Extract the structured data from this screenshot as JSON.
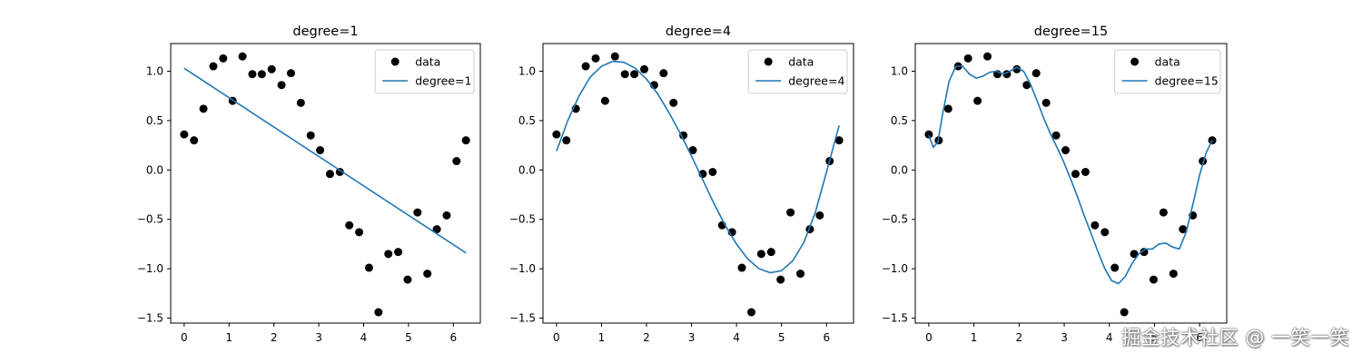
{
  "watermark": "掘金技术社区 @ 一笑一笑",
  "chart_data": [
    {
      "type": "line",
      "title": "degree=1",
      "xlabel": "",
      "ylabel": "",
      "xlim": [
        -0.3,
        6.6
      ],
      "ylim": [
        -1.55,
        1.28
      ],
      "xticks": [
        0,
        1,
        2,
        3,
        4,
        5,
        6
      ],
      "yticks": [
        -1.5,
        -1.0,
        -0.5,
        0.0,
        0.5,
        1.0
      ],
      "legend_position": "top-right",
      "series": [
        {
          "name": "data",
          "kind": "scatter",
          "color": "#000000",
          "x": [
            0.0,
            0.22,
            0.43,
            0.65,
            0.87,
            1.08,
            1.3,
            1.52,
            1.73,
            1.95,
            2.17,
            2.38,
            2.6,
            2.82,
            3.03,
            3.25,
            3.47,
            3.68,
            3.9,
            4.12,
            4.33,
            4.55,
            4.77,
            4.98,
            5.2,
            5.42,
            5.63,
            5.85,
            6.07,
            6.28
          ],
          "y": [
            0.36,
            0.3,
            0.62,
            1.05,
            1.13,
            0.7,
            1.15,
            0.97,
            0.97,
            1.02,
            0.86,
            0.98,
            0.68,
            0.35,
            0.2,
            -0.04,
            -0.02,
            -0.56,
            -0.63,
            -0.99,
            -1.44,
            -0.85,
            -0.83,
            -1.11,
            -0.43,
            -1.05,
            -0.6,
            -0.46,
            0.09,
            0.3
          ]
        },
        {
          "name": "degree=1",
          "kind": "line",
          "color": "#1f77b4",
          "x": [
            0.0,
            6.28
          ],
          "y": [
            1.03,
            -0.84
          ]
        }
      ]
    },
    {
      "type": "line",
      "title": "degree=4",
      "xlabel": "",
      "ylabel": "",
      "xlim": [
        -0.3,
        6.6
      ],
      "ylim": [
        -1.55,
        1.28
      ],
      "xticks": [
        0,
        1,
        2,
        3,
        4,
        5,
        6
      ],
      "yticks": [
        -1.5,
        -1.0,
        -0.5,
        0.0,
        0.5,
        1.0
      ],
      "legend_position": "top-right",
      "series": [
        {
          "name": "data",
          "kind": "scatter",
          "color": "#000000",
          "x": [
            0.0,
            0.22,
            0.43,
            0.65,
            0.87,
            1.08,
            1.3,
            1.52,
            1.73,
            1.95,
            2.17,
            2.38,
            2.6,
            2.82,
            3.03,
            3.25,
            3.47,
            3.68,
            3.9,
            4.12,
            4.33,
            4.55,
            4.77,
            4.98,
            5.2,
            5.42,
            5.63,
            5.85,
            6.07,
            6.28
          ],
          "y": [
            0.36,
            0.3,
            0.62,
            1.05,
            1.13,
            0.7,
            1.15,
            0.97,
            0.97,
            1.02,
            0.86,
            0.98,
            0.68,
            0.35,
            0.2,
            -0.04,
            -0.02,
            -0.56,
            -0.63,
            -0.99,
            -1.44,
            -0.85,
            -0.83,
            -1.11,
            -0.43,
            -1.05,
            -0.6,
            -0.46,
            0.09,
            0.3
          ]
        },
        {
          "name": "degree=4",
          "kind": "line",
          "color": "#1f77b4",
          "x": [
            0.0,
            0.25,
            0.5,
            0.75,
            1.0,
            1.25,
            1.5,
            1.75,
            2.0,
            2.25,
            2.5,
            2.75,
            3.0,
            3.25,
            3.5,
            3.75,
            4.0,
            4.25,
            4.5,
            4.75,
            5.0,
            5.25,
            5.5,
            5.75,
            6.0,
            6.28
          ],
          "y": [
            0.19,
            0.5,
            0.75,
            0.94,
            1.05,
            1.1,
            1.09,
            1.03,
            0.92,
            0.77,
            0.58,
            0.37,
            0.14,
            -0.1,
            -0.34,
            -0.56,
            -0.75,
            -0.9,
            -1.0,
            -1.04,
            -1.02,
            -0.92,
            -0.73,
            -0.43,
            -0.02,
            0.45
          ]
        }
      ]
    },
    {
      "type": "line",
      "title": "degree=15",
      "xlabel": "",
      "ylabel": "",
      "xlim": [
        -0.3,
        6.6
      ],
      "ylim": [
        -1.55,
        1.28
      ],
      "xticks": [
        0,
        1,
        2,
        3,
        4,
        5,
        6
      ],
      "yticks": [
        -1.5,
        -1.0,
        -0.5,
        0.0,
        0.5,
        1.0
      ],
      "legend_position": "top-right",
      "series": [
        {
          "name": "data",
          "kind": "scatter",
          "color": "#000000",
          "x": [
            0.0,
            0.22,
            0.43,
            0.65,
            0.87,
            1.08,
            1.3,
            1.52,
            1.73,
            1.95,
            2.17,
            2.38,
            2.6,
            2.82,
            3.03,
            3.25,
            3.47,
            3.68,
            3.9,
            4.12,
            4.33,
            4.55,
            4.77,
            4.98,
            5.2,
            5.42,
            5.63,
            5.85,
            6.07,
            6.28
          ],
          "y": [
            0.36,
            0.3,
            0.62,
            1.05,
            1.13,
            0.7,
            1.15,
            0.97,
            0.97,
            1.02,
            0.86,
            0.98,
            0.68,
            0.35,
            0.2,
            -0.04,
            -0.02,
            -0.56,
            -0.63,
            -0.99,
            -1.44,
            -0.85,
            -0.83,
            -1.11,
            -0.43,
            -1.05,
            -0.6,
            -0.46,
            0.09,
            0.3
          ]
        },
        {
          "name": "degree=15",
          "kind": "line",
          "color": "#1f77b4",
          "x": [
            0.0,
            0.1,
            0.2,
            0.3,
            0.45,
            0.6,
            0.75,
            0.9,
            1.05,
            1.2,
            1.35,
            1.5,
            1.65,
            1.8,
            1.95,
            2.1,
            2.25,
            2.4,
            2.55,
            2.7,
            2.85,
            3.0,
            3.15,
            3.3,
            3.45,
            3.6,
            3.75,
            3.9,
            4.05,
            4.2,
            4.35,
            4.5,
            4.65,
            4.8,
            4.95,
            5.1,
            5.25,
            5.4,
            5.55,
            5.7,
            5.85,
            6.0,
            6.15,
            6.28
          ],
          "y": [
            0.35,
            0.23,
            0.28,
            0.55,
            0.9,
            1.05,
            1.05,
            0.97,
            0.93,
            0.95,
            0.99,
            1.0,
            0.97,
            1.0,
            1.04,
            1.0,
            0.87,
            0.7,
            0.52,
            0.36,
            0.22,
            0.07,
            -0.1,
            -0.28,
            -0.47,
            -0.65,
            -0.83,
            -1.0,
            -1.12,
            -1.15,
            -1.08,
            -0.95,
            -0.85,
            -0.8,
            -0.8,
            -0.75,
            -0.74,
            -0.78,
            -0.8,
            -0.63,
            -0.35,
            -0.05,
            0.18,
            0.3
          ]
        }
      ]
    }
  ]
}
